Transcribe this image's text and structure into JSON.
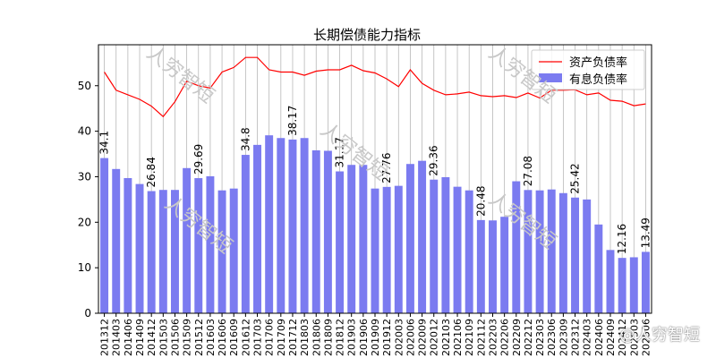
{
  "chart_data": {
    "type": "bar",
    "title": "长期偿债能力指标",
    "categories": [
      "201312",
      "201403",
      "201406",
      "201409",
      "201412",
      "201503",
      "201506",
      "201509",
      "201512",
      "201603",
      "201606",
      "201609",
      "201612",
      "201703",
      "201706",
      "201709",
      "201712",
      "201803",
      "201806",
      "201809",
      "201812",
      "201903",
      "201906",
      "201909",
      "201912",
      "202003",
      "202006",
      "202009",
      "202012",
      "202103",
      "202106",
      "202109",
      "202112",
      "202203",
      "202206",
      "202209",
      "202212",
      "202303",
      "202306",
      "202309",
      "202312",
      "202403",
      "202406",
      "202409",
      "202412",
      "202503",
      "202506"
    ],
    "series": [
      {
        "name": "有息负债率",
        "type": "bar",
        "color": "#7b7bf0",
        "values": [
          34.1,
          31.7,
          29.7,
          28.4,
          26.84,
          27.1,
          27.1,
          31.9,
          29.69,
          30.1,
          27.0,
          27.4,
          34.8,
          37.0,
          39.1,
          38.5,
          38.17,
          38.5,
          35.8,
          35.7,
          31.17,
          32.6,
          32.6,
          27.4,
          27.76,
          28.0,
          32.8,
          33.5,
          29.36,
          29.9,
          27.8,
          27.0,
          20.48,
          20.4,
          21.2,
          29.0,
          27.08,
          27.0,
          27.2,
          26.4,
          25.42,
          25.0,
          19.5,
          13.9,
          12.16,
          12.3,
          13.49
        ]
      },
      {
        "name": "资产负债率",
        "type": "line",
        "color": "#ff0000",
        "values": [
          53.0,
          49.0,
          48.0,
          47.0,
          45.5,
          43.2,
          46.5,
          51.0,
          50.0,
          49.5,
          53.0,
          54.0,
          56.2,
          56.2,
          53.5,
          53.0,
          53.0,
          52.3,
          53.2,
          53.5,
          53.5,
          54.5,
          53.3,
          52.8,
          51.5,
          49.8,
          53.5,
          50.5,
          49.0,
          48.0,
          48.2,
          48.6,
          47.8,
          47.6,
          47.8,
          47.4,
          48.4,
          47.3,
          49.0,
          49.0,
          49.1,
          48.0,
          48.4,
          46.8,
          46.6,
          45.6,
          46.0
        ]
      }
    ],
    "data_labels": [
      {
        "index": 0,
        "text": "34.1"
      },
      {
        "index": 4,
        "text": "26.84"
      },
      {
        "index": 8,
        "text": "29.69"
      },
      {
        "index": 12,
        "text": "34.8"
      },
      {
        "index": 16,
        "text": "38.17"
      },
      {
        "index": 20,
        "text": "31.17"
      },
      {
        "index": 24,
        "text": "27.76"
      },
      {
        "index": 28,
        "text": "29.36"
      },
      {
        "index": 32,
        "text": "20.48"
      },
      {
        "index": 36,
        "text": "27.08"
      },
      {
        "index": 40,
        "text": "25.42"
      },
      {
        "index": 44,
        "text": "12.16"
      },
      {
        "index": 46,
        "text": "13.49"
      }
    ],
    "yticks": [
      0,
      10,
      20,
      30,
      40,
      50
    ],
    "ylim": [
      0,
      59
    ],
    "grid": "x",
    "legend_position": "top-right"
  },
  "watermark_text": "人穷智短",
  "credit_text": "@人穷智短"
}
